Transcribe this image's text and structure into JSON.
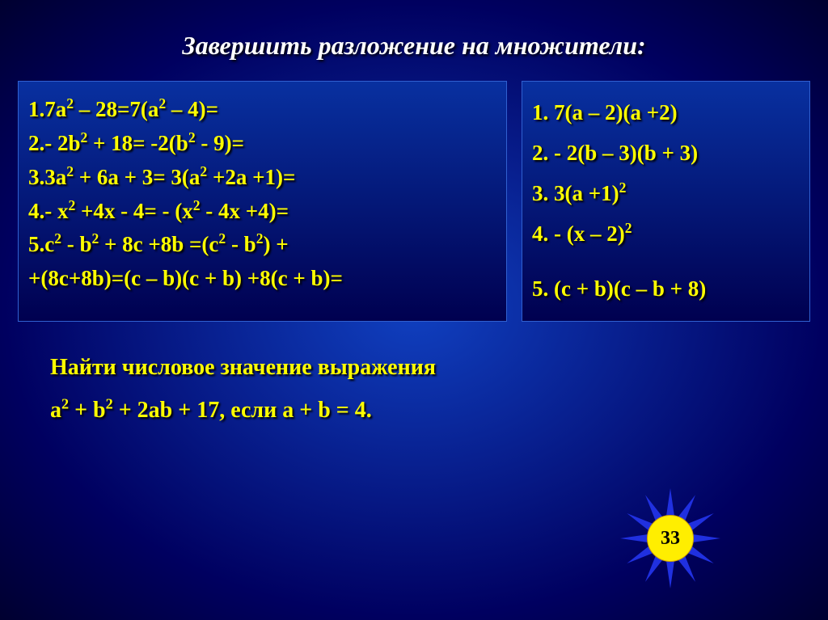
{
  "title": "Завершить разложение на множители:",
  "left_equations": [
    "1.7a² – 28=7(a² – 4)=",
    "2.- 2b² + 18= -2(b²  - 9)=",
    "3.3a² + 6a + 3= 3(a² +2a +1)=",
    "4.- x² +4x - 4= - (x² - 4x +4)=",
    "5.c² - b² + 8c +8b =(c² - b²) +",
    "+(8c+8b)=(c – b)(c + b) +8(c + b)="
  ],
  "right_equations": [
    "1. 7(a – 2)(a +2)",
    "2. - 2(b – 3)(b + 3)",
    "3. 3(a +1)²",
    "4. - (x – 2)²",
    "5. (c + b)(c – b + 8)"
  ],
  "bottom_line1": "Найти числовое значение выражения",
  "bottom_line2": "a² + b² + 2ab + 17,  если a + b = 4.",
  "sun_number": "33",
  "colors": {
    "text_yellow": "#ffff00",
    "title_white": "#ffffff",
    "ray_fill": "#2030e0",
    "sun_fill": "#ffee00"
  },
  "sun": {
    "ray_count": 12
  }
}
